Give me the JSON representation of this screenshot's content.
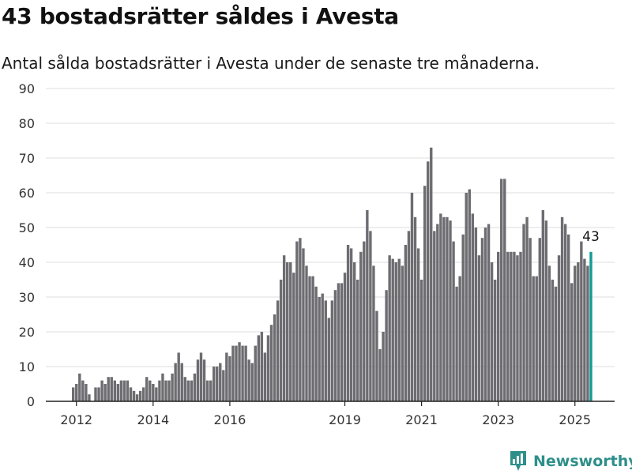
{
  "header": {
    "title": "43 bostadsrätter såldes i Avesta",
    "subtitle": "Antal sålda bostadsrätter i Avesta under de senaste tre månaderna."
  },
  "brand": {
    "name": "Newsworthy"
  },
  "colors": {
    "bar": "#6d6c71",
    "highlight": "#129c94",
    "grid": "#dedede",
    "axis": "#222222"
  },
  "chart_data": {
    "type": "bar",
    "title": "43 bostadsrätter såldes i Avesta",
    "subtitle": "Antal sålda bostadsrätter i Avesta under de senaste tre månaderna.",
    "y_ticks": [
      0,
      10,
      20,
      30,
      40,
      50,
      60,
      70,
      80,
      90
    ],
    "ylim": [
      0,
      90
    ],
    "x_ticks": [
      {
        "label": "2012",
        "index": 1
      },
      {
        "label": "2014",
        "index": 25
      },
      {
        "label": "2016",
        "index": 49
      },
      {
        "label": "2019",
        "index": 85
      },
      {
        "label": "2021",
        "index": 109
      },
      {
        "label": "2023",
        "index": 133
      },
      {
        "label": "2025",
        "index": 157
      }
    ],
    "grid": true,
    "highlight_index": 162,
    "highlight_label": "43",
    "values": [
      4,
      5,
      8,
      6,
      5,
      2,
      0,
      4,
      4,
      6,
      5,
      7,
      7,
      6,
      5,
      6,
      6,
      6,
      4,
      3,
      2,
      3,
      4,
      7,
      6,
      5,
      4,
      6,
      8,
      6,
      6,
      8,
      11,
      14,
      11,
      7,
      6,
      6,
      8,
      12,
      14,
      12,
      6,
      6,
      10,
      10,
      11,
      9,
      14,
      13,
      16,
      16,
      17,
      16,
      16,
      12,
      11,
      16,
      19,
      20,
      14,
      19,
      22,
      25,
      29,
      35,
      42,
      40,
      40,
      37,
      46,
      47,
      44,
      39,
      36,
      36,
      33,
      30,
      31,
      29,
      24,
      29,
      32,
      34,
      34,
      37,
      45,
      44,
      40,
      35,
      43,
      46,
      55,
      49,
      39,
      26,
      15,
      20,
      32,
      42,
      41,
      40,
      41,
      39,
      45,
      49,
      60,
      53,
      44,
      35,
      62,
      69,
      73,
      49,
      51,
      54,
      53,
      53,
      52,
      46,
      33,
      36,
      48,
      60,
      61,
      54,
      50,
      42,
      47,
      50,
      51,
      40,
      35,
      43,
      64,
      64,
      43,
      43,
      43,
      42,
      43,
      51,
      53,
      47,
      36,
      36,
      47,
      55,
      52,
      39,
      35,
      33,
      42,
      53,
      51,
      48,
      34,
      39,
      40,
      46,
      41,
      39,
      43
    ]
  }
}
